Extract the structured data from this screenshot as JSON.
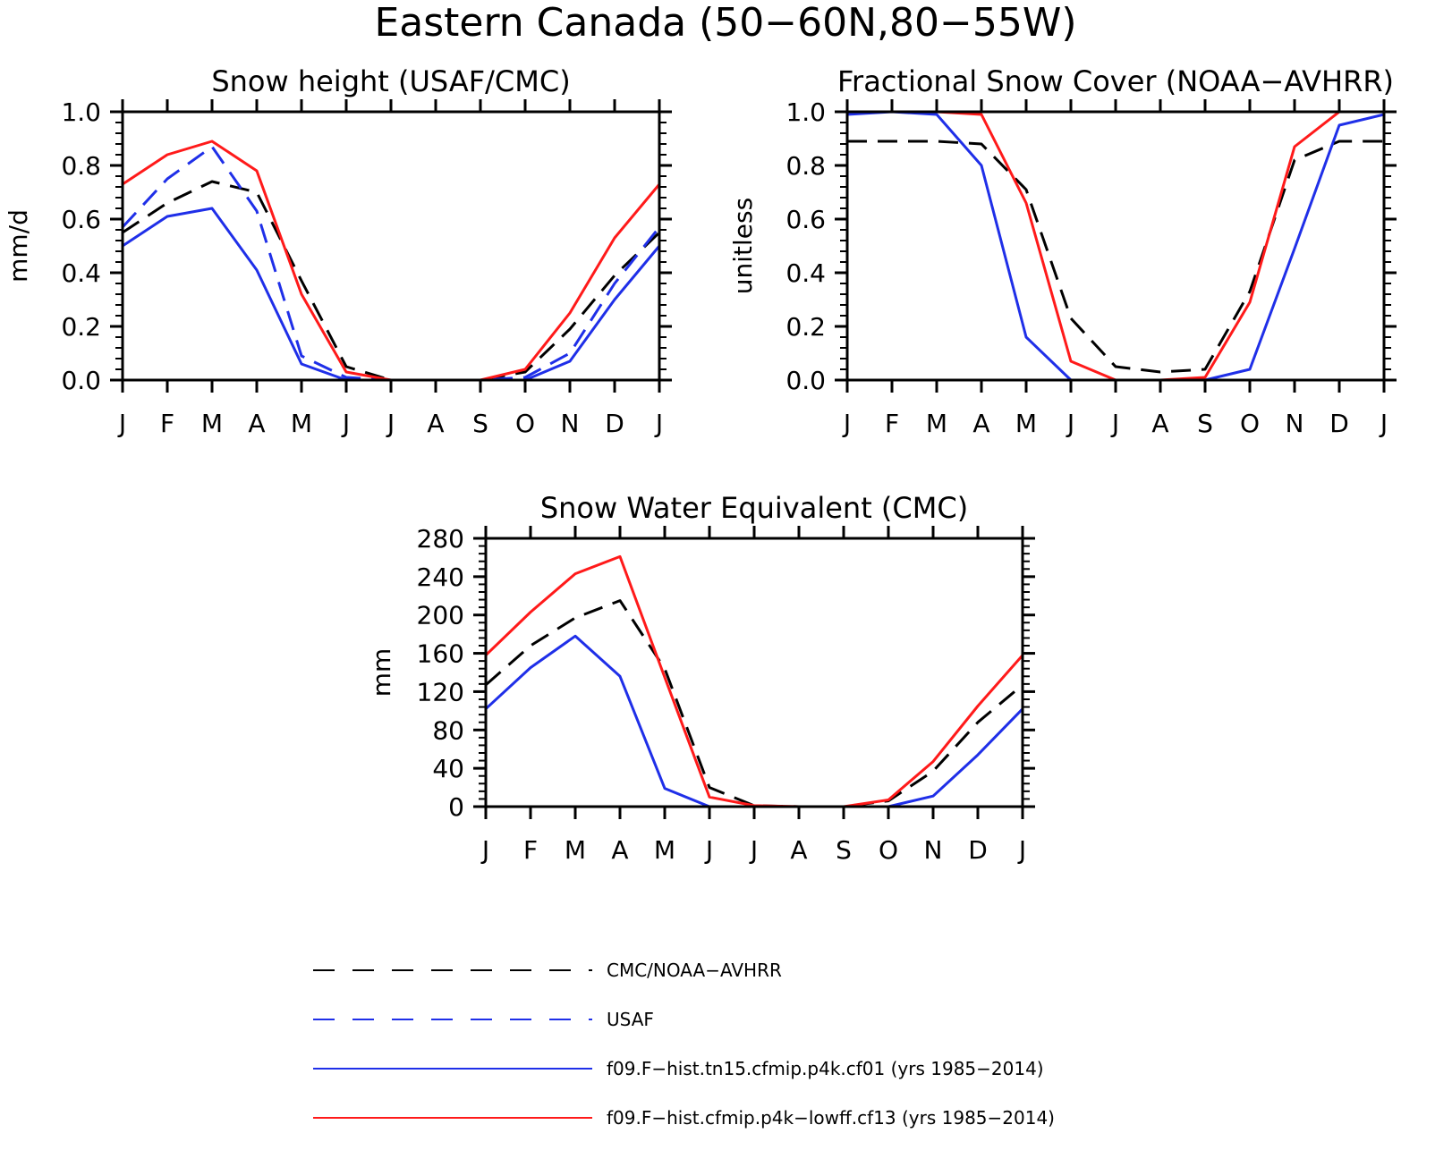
{
  "figure": {
    "title": "Eastern Canada (50−60N,80−55W)"
  },
  "colors": {
    "obs": "#000000",
    "usaf": "#1f2fe8",
    "cf01": "#1f2fe8",
    "cf13": "#ff1a1a"
  },
  "chart_data": [
    {
      "type": "line",
      "title": "Snow height (USAF/CMC)",
      "xlabel": "",
      "ylabel": "mm/d",
      "categories": [
        "J",
        "F",
        "M",
        "A",
        "M",
        "J",
        "J",
        "A",
        "S",
        "O",
        "N",
        "D",
        "J"
      ],
      "ylim": [
        0,
        1.0
      ],
      "yticks": [
        0.0,
        0.2,
        0.4,
        0.6,
        0.8,
        1.0
      ],
      "ytick_labels": [
        "0.0",
        "0.2",
        "0.4",
        "0.6",
        "0.8",
        "1.0"
      ],
      "grid": false,
      "series": [
        {
          "name": "CMC/NOAA−AVHRR",
          "style": "dashed",
          "color_key": "obs",
          "values": [
            0.55,
            0.66,
            0.74,
            0.7,
            0.37,
            0.05,
            0.0,
            0.0,
            0.0,
            0.03,
            0.19,
            0.39,
            0.55
          ]
        },
        {
          "name": "USAF",
          "style": "dashed",
          "color_key": "usaf",
          "values": [
            0.57,
            0.75,
            0.87,
            0.63,
            0.09,
            0.01,
            0.0,
            0.0,
            0.0,
            0.01,
            0.1,
            0.36,
            0.57
          ]
        },
        {
          "name": "f09.F−hist.tn15.cfmip.p4k.cf01 (yrs 1985−2014)",
          "style": "solid",
          "color_key": "cf01",
          "values": [
            0.5,
            0.61,
            0.64,
            0.41,
            0.06,
            0.0,
            0.0,
            0.0,
            0.0,
            0.0,
            0.07,
            0.3,
            0.5
          ]
        },
        {
          "name": "f09.F−hist.cfmip.p4k−lowff.cf13 (yrs 1985−2014)",
          "style": "solid",
          "color_key": "cf13",
          "values": [
            0.73,
            0.84,
            0.89,
            0.78,
            0.32,
            0.03,
            0.0,
            0.0,
            0.0,
            0.04,
            0.25,
            0.53,
            0.73
          ]
        }
      ]
    },
    {
      "type": "line",
      "title": "Fractional Snow Cover (NOAA−AVHRR)",
      "xlabel": "",
      "ylabel": "unitless",
      "categories": [
        "J",
        "F",
        "M",
        "A",
        "M",
        "J",
        "J",
        "A",
        "S",
        "O",
        "N",
        "D",
        "J"
      ],
      "ylim": [
        0,
        1.0
      ],
      "yticks": [
        0.0,
        0.2,
        0.4,
        0.6,
        0.8,
        1.0
      ],
      "ytick_labels": [
        "0.0",
        "0.2",
        "0.4",
        "0.6",
        "0.8",
        "1.0"
      ],
      "grid": false,
      "series": [
        {
          "name": "CMC/NOAA−AVHRR",
          "style": "dashed",
          "color_key": "obs",
          "values": [
            0.89,
            0.89,
            0.89,
            0.88,
            0.71,
            0.23,
            0.05,
            0.03,
            0.04,
            0.33,
            0.82,
            0.89,
            0.89
          ]
        },
        {
          "name": "f09.F−hist.tn15.cfmip.p4k.cf01 (yrs 1985−2014)",
          "style": "solid",
          "color_key": "cf01",
          "values": [
            0.99,
            1.0,
            0.99,
            0.8,
            0.16,
            0.0,
            0.0,
            0.0,
            0.0,
            0.04,
            0.49,
            0.95,
            0.99
          ]
        },
        {
          "name": "f09.F−hist.cfmip.p4k−lowff.cf13 (yrs 1985−2014)",
          "style": "solid",
          "color_key": "cf13",
          "values": [
            1.0,
            1.0,
            1.0,
            0.99,
            0.66,
            0.07,
            0.0,
            0.0,
            0.01,
            0.29,
            0.87,
            1.0,
            1.0
          ]
        }
      ]
    },
    {
      "type": "line",
      "title": "Snow Water Equivalent (CMC)",
      "xlabel": "",
      "ylabel": "mm",
      "categories": [
        "J",
        "F",
        "M",
        "A",
        "M",
        "J",
        "J",
        "A",
        "S",
        "O",
        "N",
        "D",
        "J"
      ],
      "ylim": [
        0,
        280
      ],
      "yticks": [
        0,
        40,
        80,
        120,
        160,
        200,
        240,
        280
      ],
      "ytick_labels": [
        "0",
        "40",
        "80",
        "120",
        "160",
        "200",
        "240",
        "280"
      ],
      "grid": false,
      "series": [
        {
          "name": "CMC/NOAA−AVHRR",
          "style": "dashed",
          "color_key": "obs",
          "values": [
            127,
            168,
            197,
            215,
            144,
            20,
            1,
            0,
            0,
            6,
            37,
            88,
            127
          ]
        },
        {
          "name": "f09.F−hist.tn15.cfmip.p4k.cf01 (yrs 1985−2014)",
          "style": "solid",
          "color_key": "cf01",
          "values": [
            102,
            145,
            178,
            136,
            19,
            0,
            0,
            0,
            0,
            0,
            11,
            54,
            102
          ]
        },
        {
          "name": "f09.F−hist.cfmip.p4k−lowff.cf13 (yrs 1985−2014)",
          "style": "solid",
          "color_key": "cf13",
          "values": [
            158,
            203,
            243,
            261,
            135,
            10,
            1,
            0,
            0,
            7,
            47,
            105,
            158
          ]
        }
      ]
    }
  ],
  "legend": [
    {
      "label": "CMC/NOAA−AVHRR",
      "style": "dashed",
      "color_key": "obs"
    },
    {
      "label": "USAF",
      "style": "dashed",
      "color_key": "usaf"
    },
    {
      "label": "f09.F−hist.tn15.cfmip.p4k.cf01 (yrs 1985−2014)",
      "style": "solid",
      "color_key": "cf01"
    },
    {
      "label": "f09.F−hist.cfmip.p4k−lowff.cf13 (yrs 1985−2014)",
      "style": "solid",
      "color_key": "cf13"
    }
  ]
}
